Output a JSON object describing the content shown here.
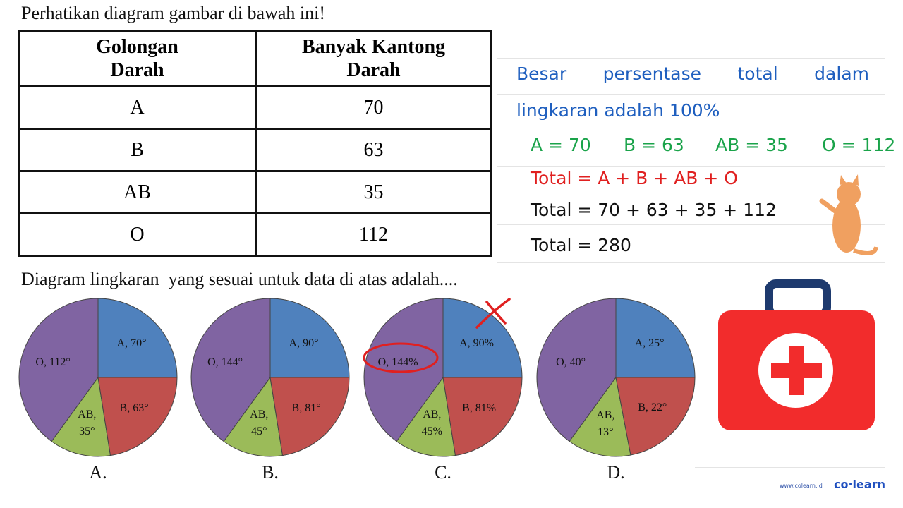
{
  "question": {
    "intro": "Perhatikan diagram gambar di bawah ini!",
    "prompt": "Diagram lingkaran  yang sesuai untuk data di atas adalah...."
  },
  "table": {
    "header": [
      "Golongan Darah",
      "Banyak Kantong Darah"
    ],
    "rows": [
      [
        "A",
        "70"
      ],
      [
        "B",
        "63"
      ],
      [
        "AB",
        "35"
      ],
      [
        "O",
        "112"
      ]
    ]
  },
  "options": [
    {
      "letter": "A.",
      "slices": [
        {
          "value": 70,
          "label": "A, 70°"
        },
        {
          "value": 63,
          "label": "B, 63°"
        },
        {
          "value": 35,
          "label": "AB, 35°"
        },
        {
          "value": 112,
          "label": "O, 112°"
        }
      ]
    },
    {
      "letter": "B.",
      "slices": [
        {
          "value": 90,
          "label": "A, 90°"
        },
        {
          "value": 81,
          "label": "B, 81°"
        },
        {
          "value": 45,
          "label": "AB, 45°"
        },
        {
          "value": 144,
          "label": "O, 144°"
        }
      ]
    },
    {
      "letter": "C.",
      "slices": [
        {
          "value": 90,
          "label": "A, 90%"
        },
        {
          "value": 81,
          "label": "B, 81%"
        },
        {
          "value": 45,
          "label": "AB, 45%"
        },
        {
          "value": 144,
          "label": "O, 144%"
        }
      ]
    },
    {
      "letter": "D.",
      "slices": [
        {
          "value": 25,
          "label": "A, 25°"
        },
        {
          "value": 22,
          "label": "B, 22°"
        },
        {
          "value": 13,
          "label": "AB, 13°"
        },
        {
          "value": 40,
          "label": "O, 40°"
        }
      ]
    }
  ],
  "slice_colors": [
    "#4f81bd",
    "#c0504d",
    "#9bbb59",
    "#8064a2"
  ],
  "notes": {
    "line1": "Besar persentase total dalam",
    "line2": "lingkaran adalah 100%",
    "values": [
      "A = 70",
      "B = 63",
      "AB = 35",
      "O = 112"
    ],
    "formula": "Total = A + B + AB + O",
    "substitution": "Total = 70 + 63 + 35 + 112",
    "result": "Total = 280"
  },
  "footer": {
    "url": "www.colearn.id",
    "brand": "co·learn"
  }
}
